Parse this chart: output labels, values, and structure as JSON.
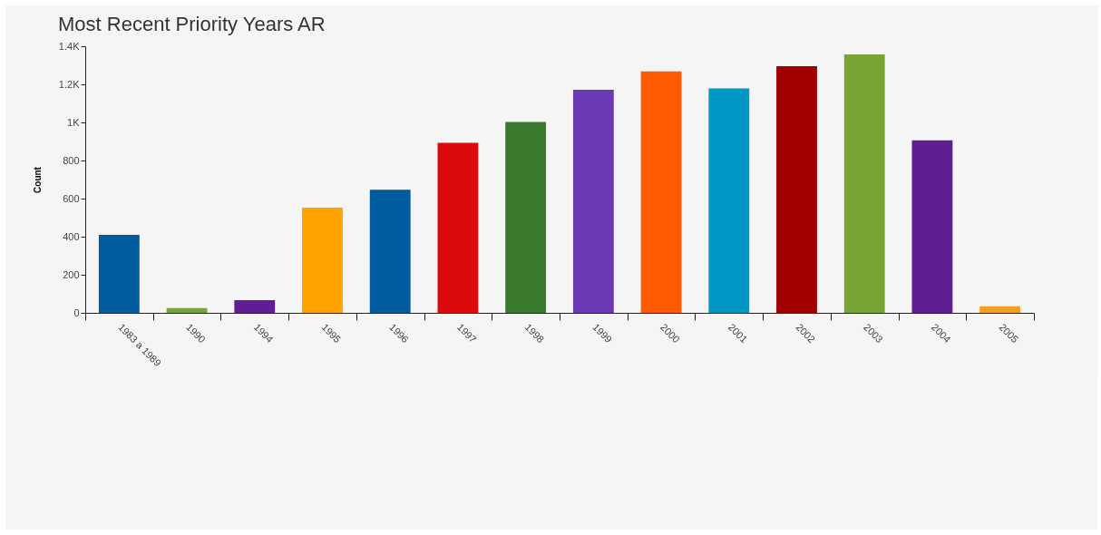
{
  "chart_data": {
    "type": "bar",
    "title": "Most Recent Priority Years AR",
    "ylabel": "Count",
    "categories": [
      "1983 a 1989",
      "1990",
      "1994",
      "1995",
      "1996",
      "1997",
      "1998",
      "1999",
      "2000",
      "2001",
      "2002",
      "2003",
      "2004",
      "2005"
    ],
    "values": [
      410,
      25,
      67,
      552,
      646,
      893,
      1002,
      1172,
      1268,
      1179,
      1295,
      1357,
      906,
      35
    ],
    "colors": [
      "#005b9f",
      "#7aa23a",
      "#5f1e91",
      "#ffa200",
      "#005b9f",
      "#dc0a0a",
      "#3a7a2e",
      "#6d3ab5",
      "#ff5a00",
      "#0097c4",
      "#a00000",
      "#79a332",
      "#5f1e91",
      "#f0a020"
    ],
    "ylim": [
      0,
      1400
    ],
    "yticks": [
      0,
      200,
      400,
      600,
      800,
      {
        "value": 1000,
        "label": "1K"
      },
      {
        "value": 1200,
        "label": "1.2K"
      },
      {
        "value": 1400,
        "label": "1.4K"
      }
    ],
    "grid": false
  }
}
